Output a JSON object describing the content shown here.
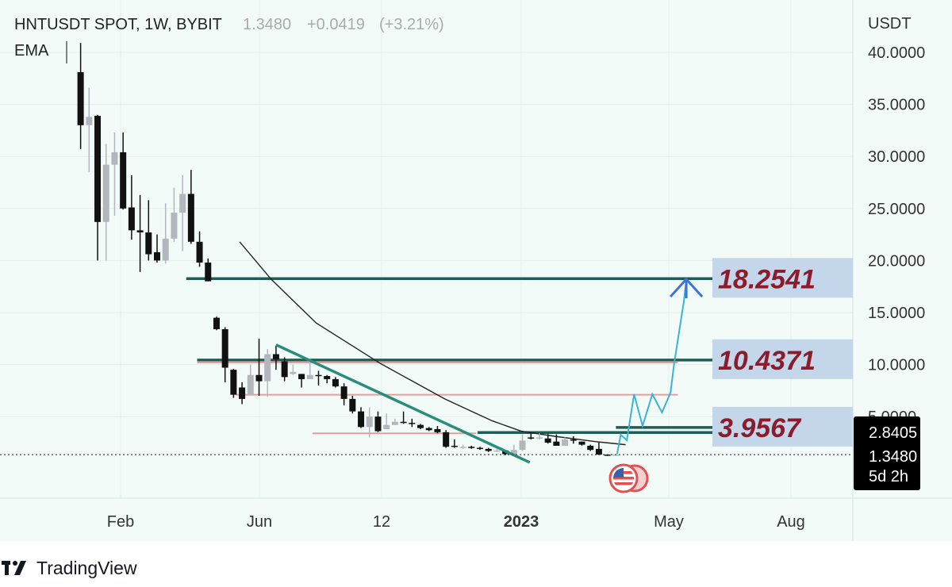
{
  "header": {
    "symbol": "HNTUSDT SPOT, 1W, BYBIT",
    "price": "1.3480",
    "change": "+0.0419",
    "change_pct": "(+3.21%)",
    "indicator": "EMA"
  },
  "price_axis": {
    "unit": "USDT",
    "ticks": [
      "40.0000",
      "35.0000",
      "30.0000",
      "25.0000",
      "20.0000",
      "15.0000",
      "10.0000",
      "5.0000"
    ],
    "badge": {
      "value1": "2.8405",
      "value2": "1.3480",
      "countdown": "5d 2h"
    }
  },
  "time_axis": {
    "ticks": [
      "Feb",
      "Jun",
      "12",
      "2023",
      "May",
      "Aug"
    ],
    "bold_tick": "2023"
  },
  "brand": {
    "name": "TradingView"
  },
  "colors": {
    "background": "#f3fbf9",
    "down": "#111111",
    "up": "#b4b6bd",
    "level_line": "#1e5e55",
    "trendline": "#2a8c7a",
    "pink_line": "#ea9c9c",
    "projection": "#3ab4d4",
    "arrow": "#3a74d6",
    "label_box": "#c3d6ea",
    "label_text": "#8b1c2c",
    "ema": "#222222"
  },
  "chart_data": {
    "type": "candlestick",
    "interval": "1W",
    "first_candle_date": "2022-01-03",
    "ylim": [
      0,
      42
    ],
    "candles_ohlc": [
      [
        38.1,
        40.9,
        30.7,
        33.0
      ],
      [
        33.0,
        36.6,
        28.5,
        33.8
      ],
      [
        33.9,
        34.0,
        20.0,
        23.7
      ],
      [
        23.7,
        31.2,
        20.0,
        29.2
      ],
      [
        29.2,
        32.3,
        24.3,
        30.4
      ],
      [
        30.4,
        32.3,
        24.9,
        25.0
      ],
      [
        25.1,
        28.2,
        22.0,
        22.9
      ],
      [
        22.9,
        26.3,
        18.9,
        22.7
      ],
      [
        22.7,
        25.8,
        20.0,
        20.6
      ],
      [
        20.8,
        22.5,
        19.8,
        20.0
      ],
      [
        20.0,
        25.5,
        19.7,
        22.1
      ],
      [
        22.1,
        27.0,
        21.8,
        24.6
      ],
      [
        24.6,
        28.2,
        20.9,
        26.4
      ],
      [
        26.4,
        28.7,
        21.6,
        21.8
      ],
      [
        21.8,
        22.8,
        19.4,
        19.8
      ],
      [
        19.8,
        20.2,
        18.0,
        18.0
      ],
      [
        14.5,
        14.6,
        13.3,
        13.4
      ],
      [
        13.4,
        13.6,
        8.3,
        9.7
      ],
      [
        9.5,
        9.6,
        6.8,
        7.1
      ],
      [
        7.8,
        8.3,
        6.2,
        6.7
      ],
      [
        7.1,
        10.0,
        7.1,
        9.0
      ],
      [
        9.0,
        12.5,
        7.0,
        8.4
      ],
      [
        8.4,
        11.5,
        6.9,
        11.0
      ],
      [
        11.0,
        11.8,
        9.5,
        10.5
      ],
      [
        10.3,
        10.7,
        8.4,
        8.8
      ],
      [
        9.1,
        10.0,
        9.0,
        9.3
      ],
      [
        9.1,
        9.1,
        7.8,
        8.6
      ],
      [
        8.6,
        10.6,
        8.6,
        9.0
      ],
      [
        9.0,
        9.4,
        8.0,
        8.9
      ],
      [
        8.9,
        9.0,
        8.2,
        8.6
      ],
      [
        8.6,
        8.8,
        7.8,
        7.9
      ],
      [
        7.9,
        8.2,
        6.1,
        6.7
      ],
      [
        6.7,
        7.0,
        5.3,
        5.5
      ],
      [
        5.5,
        5.9,
        3.9,
        4.0
      ],
      [
        4.0,
        5.9,
        3.0,
        5.0
      ],
      [
        5.0,
        5.5,
        3.5,
        3.6
      ],
      [
        3.8,
        5.3,
        3.8,
        4.2
      ],
      [
        4.2,
        4.8,
        4.2,
        4.5
      ],
      [
        4.5,
        5.5,
        4.3,
        4.4
      ],
      [
        4.4,
        4.8,
        4.0,
        4.3
      ],
      [
        4.2,
        4.3,
        3.8,
        3.9
      ],
      [
        3.9,
        4.0,
        3.6,
        3.7
      ],
      [
        3.8,
        4.1,
        3.4,
        3.5
      ],
      [
        3.5,
        3.7,
        2.0,
        2.1
      ],
      [
        2.2,
        2.8,
        2.0,
        2.1
      ],
      [
        2.0,
        2.3,
        1.9,
        2.1
      ],
      [
        2.1,
        2.2,
        1.9,
        2.0
      ],
      [
        2.0,
        2.1,
        1.8,
        1.9
      ],
      [
        1.9,
        2.0,
        1.6,
        1.7
      ],
      [
        1.7,
        1.9,
        1.6,
        1.75
      ],
      [
        1.75,
        1.8,
        1.3,
        1.4
      ],
      [
        1.4,
        2.3,
        1.3,
        1.8
      ],
      [
        1.8,
        3.3,
        1.7,
        2.7
      ],
      [
        3.0,
        3.4,
        2.8,
        2.9
      ],
      [
        2.9,
        3.4,
        2.8,
        3.0
      ],
      [
        2.9,
        3.4,
        2.4,
        2.5
      ],
      [
        2.6,
        3.3,
        2.2,
        2.2
      ],
      [
        2.2,
        3.0,
        2.2,
        2.8
      ],
      [
        2.8,
        3.1,
        2.4,
        2.7
      ],
      [
        2.6,
        2.6,
        2.2,
        2.3
      ],
      [
        2.2,
        2.3,
        1.7,
        1.8
      ],
      [
        1.9,
        2.5,
        1.3,
        1.35
      ],
      [
        1.35,
        1.4,
        1.2,
        1.25
      ],
      [
        1.3,
        1.4,
        1.25,
        1.348
      ]
    ],
    "ema": [
      [
        "2022-05-14",
        21.8
      ],
      [
        "2022-06-09",
        18.2
      ],
      [
        "2022-07-16",
        14.0
      ],
      [
        "2022-09-07",
        10.1
      ],
      [
        "2022-10-30",
        6.7
      ],
      [
        "2022-12-08",
        4.6
      ],
      [
        "2023-01-01",
        3.6
      ],
      [
        "2023-01-29",
        3.1
      ],
      [
        "2023-03-03",
        2.6
      ],
      [
        "2023-03-28",
        2.3
      ]
    ],
    "levels": [
      {
        "value": 18.2541,
        "label": "18.2541",
        "from": "2022-03-31"
      },
      {
        "value": 10.4371,
        "label": "10.4371",
        "from": "2022-04-09"
      },
      {
        "value": 3.9567,
        "label": "3.9567",
        "from": "2023-03-20"
      }
    ],
    "support_line": {
      "value": 3.4,
      "from": "2022-11-26"
    },
    "pink_lines": [
      {
        "value": 10.2,
        "from": "2022-04-09",
        "to": "2023-05-10"
      },
      {
        "value": 7.1,
        "from": "2022-05-11",
        "to": "2023-05-10"
      },
      {
        "value": 3.4,
        "from": "2022-07-13",
        "to": "2022-11-25"
      }
    ],
    "trendline": [
      [
        "2022-06-13",
        11.9
      ],
      [
        "2023-01-08",
        0.6
      ]
    ],
    "projection": [
      [
        "2023-03-21",
        1.43
      ],
      [
        "2023-03-24",
        3.26
      ],
      [
        "2023-03-29",
        2.73
      ],
      [
        "2023-04-04",
        7.15
      ],
      [
        "2023-04-11",
        4.1
      ],
      [
        "2023-04-19",
        7.15
      ],
      [
        "2023-04-27",
        5.4
      ],
      [
        "2023-05-04",
        7.3
      ],
      [
        "2023-05-07",
        10.1
      ],
      [
        "2023-05-15",
        16.07
      ],
      [
        "2023-05-17",
        18.2
      ]
    ],
    "last_price": 1.348
  }
}
